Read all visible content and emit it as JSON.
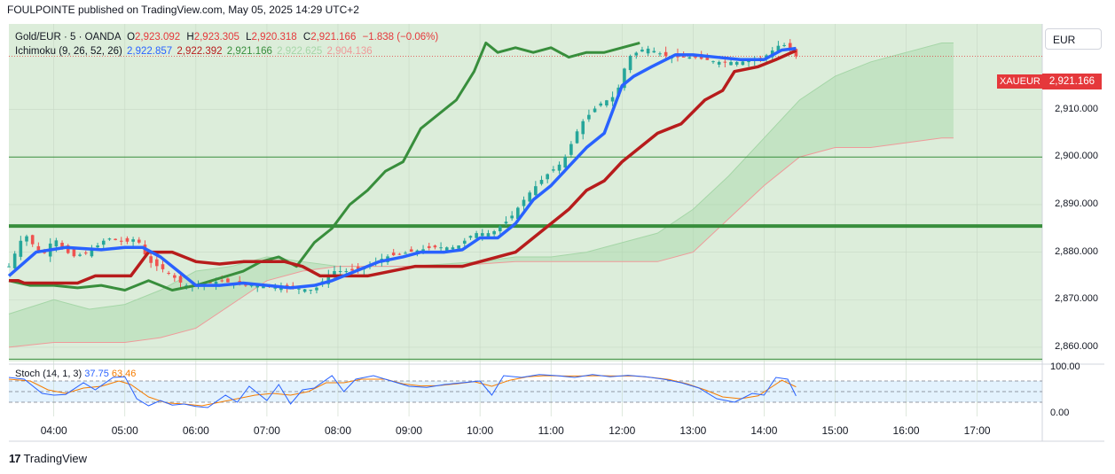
{
  "header": {
    "publisher_line": "FOULPOINTE published on TradingView.com, May 05, 2025 14:29 UTC+2"
  },
  "legend": {
    "symbol": "Gold/EUR · 5 · OANDA",
    "o_label": "O",
    "o": "2,923.092",
    "h_label": "H",
    "h": "2,923.305",
    "l_label": "L",
    "l": "2,920.318",
    "c_label": "C",
    "c": "2,921.166",
    "change": "−1.838 (−0.06%)",
    "ichimoku_label": "Ichimoku (9, 26, 52, 26)",
    "conversion": "2,922.857",
    "base": "2,922.392",
    "lagging": "2,921.166",
    "span_a": "2,922.625",
    "span_b": "2,904.136"
  },
  "stoch": {
    "label": "Stoch (14, 1, 3)",
    "k": "37.75",
    "d": "63.46"
  },
  "currency": "EUR",
  "price_tag": {
    "symbol": "XAUEUR",
    "price": "2,921.166"
  },
  "footer": {
    "brand": "TradingView"
  },
  "colors": {
    "up": "#26a69a",
    "down": "#ef5350",
    "conversion": "#2962ff",
    "base": "#b71c1c",
    "lagging": "#388e3c",
    "span_a": "#a5d6a7",
    "span_b": "#ef9a9a",
    "stoch_k": "#2962ff",
    "stoch_d": "#f57c00"
  },
  "chart_data": {
    "type": "candlestick",
    "instrument": "Gold/EUR",
    "timeframe": "5",
    "price_axis": {
      "ticks": [
        "2,860.000",
        "2,870.000",
        "2,880.000",
        "2,890.000",
        "2,900.000",
        "2,910.000"
      ],
      "range": [
        2857,
        2928
      ]
    },
    "stoch_axis": {
      "ticks": [
        "0.00",
        "100.00"
      ],
      "bands": [
        20,
        80
      ]
    },
    "time_axis": {
      "ticks": [
        "04:00",
        "05:00",
        "06:00",
        "07:00",
        "08:00",
        "09:00",
        "10:00",
        "11:00",
        "12:00",
        "13:00",
        "14:00",
        "15:00",
        "16:00",
        "17:00"
      ]
    },
    "horizontal_lines": [
      2900,
      2885.5,
      2857.5
    ],
    "price_path": [
      [
        "03:22",
        2877
      ],
      [
        "03:35",
        2884
      ],
      [
        "03:50",
        2879
      ],
      [
        "04:00",
        2883
      ],
      [
        "04:15",
        2879
      ],
      [
        "04:30",
        2880
      ],
      [
        "04:45",
        2883
      ],
      [
        "05:00",
        2882
      ],
      [
        "05:10",
        2883
      ],
      [
        "05:20",
        2878
      ],
      [
        "05:35",
        2876
      ],
      [
        "05:50",
        2873
      ],
      [
        "06:05",
        2873
      ],
      [
        "06:20",
        2874
      ],
      [
        "06:40",
        2873
      ],
      [
        "07:00",
        2873
      ],
      [
        "07:20",
        2872.5
      ],
      [
        "07:40",
        2872
      ],
      [
        "07:55",
        2876
      ],
      [
        "08:10",
        2876
      ],
      [
        "08:25",
        2877
      ],
      [
        "08:40",
        2879
      ],
      [
        "09:00",
        2880
      ],
      [
        "09:20",
        2881
      ],
      [
        "09:40",
        2881
      ],
      [
        "09:55",
        2884
      ],
      [
        "10:10",
        2884
      ],
      [
        "10:25",
        2887
      ],
      [
        "10:40",
        2892
      ],
      [
        "10:55",
        2896
      ],
      [
        "11:10",
        2899
      ],
      [
        "11:25",
        2907
      ],
      [
        "11:40",
        2911
      ],
      [
        "11:55",
        2913
      ],
      [
        "12:05",
        2921
      ],
      [
        "12:20",
        2923
      ],
      [
        "12:40",
        2921
      ],
      [
        "13:00",
        2921
      ],
      [
        "13:20",
        2920
      ],
      [
        "13:40",
        2920
      ],
      [
        "14:00",
        2921
      ],
      [
        "14:15",
        2924
      ],
      [
        "14:27",
        2921.2
      ]
    ],
    "conversion_line": [
      [
        "03:22",
        2875
      ],
      [
        "03:45",
        2880
      ],
      [
        "04:10",
        2881
      ],
      [
        "04:40",
        2880.5
      ],
      [
        "05:00",
        2881
      ],
      [
        "05:15",
        2881
      ],
      [
        "05:30",
        2879
      ],
      [
        "05:45",
        2876
      ],
      [
        "06:00",
        2873
      ],
      [
        "06:20",
        2873
      ],
      [
        "06:40",
        2873.5
      ],
      [
        "07:00",
        2873
      ],
      [
        "07:20",
        2872.5
      ],
      [
        "07:40",
        2873
      ],
      [
        "07:55",
        2874
      ],
      [
        "08:15",
        2876
      ],
      [
        "08:35",
        2878
      ],
      [
        "08:55",
        2879
      ],
      [
        "09:10",
        2880
      ],
      [
        "09:30",
        2880
      ],
      [
        "09:45",
        2880.5
      ],
      [
        "10:00",
        2883
      ],
      [
        "10:15",
        2883
      ],
      [
        "10:30",
        2886
      ],
      [
        "10:45",
        2891
      ],
      [
        "11:00",
        2894
      ],
      [
        "11:15",
        2898
      ],
      [
        "11:30",
        2902
      ],
      [
        "11:45",
        2905
      ],
      [
        "12:00",
        2915
      ],
      [
        "12:10",
        2917
      ],
      [
        "12:25",
        2919
      ],
      [
        "12:45",
        2921.5
      ],
      [
        "13:00",
        2921.5
      ],
      [
        "13:20",
        2921
      ],
      [
        "13:40",
        2920.5
      ],
      [
        "14:00",
        2920.5
      ],
      [
        "14:15",
        2922.5
      ],
      [
        "14:27",
        2922.86
      ]
    ],
    "base_line": [
      [
        "03:22",
        2874
      ],
      [
        "03:30",
        2874
      ],
      [
        "03:35",
        2873.5
      ],
      [
        "04:00",
        2873.5
      ],
      [
        "04:20",
        2873.5
      ],
      [
        "04:35",
        2875
      ],
      [
        "05:05",
        2875
      ],
      [
        "05:20",
        2880
      ],
      [
        "05:40",
        2880
      ],
      [
        "06:00",
        2878
      ],
      [
        "06:20",
        2877.5
      ],
      [
        "06:40",
        2878
      ],
      [
        "07:00",
        2878
      ],
      [
        "07:15",
        2878
      ],
      [
        "07:30",
        2877
      ],
      [
        "07:45",
        2875
      ],
      [
        "08:00",
        2875
      ],
      [
        "08:25",
        2875
      ],
      [
        "08:45",
        2876
      ],
      [
        "09:05",
        2877
      ],
      [
        "09:25",
        2877
      ],
      [
        "09:45",
        2877
      ],
      [
        "10:00",
        2878
      ],
      [
        "10:15",
        2879
      ],
      [
        "10:30",
        2880
      ],
      [
        "10:45",
        2883
      ],
      [
        "11:00",
        2886
      ],
      [
        "11:15",
        2889
      ],
      [
        "11:30",
        2893
      ],
      [
        "11:45",
        2895
      ],
      [
        "12:00",
        2899
      ],
      [
        "12:15",
        2902
      ],
      [
        "12:30",
        2905
      ],
      [
        "12:50",
        2907
      ],
      [
        "13:10",
        2912
      ],
      [
        "13:25",
        2914
      ],
      [
        "13:35",
        2918
      ],
      [
        "13:55",
        2919
      ],
      [
        "14:10",
        2920.5
      ],
      [
        "14:27",
        2922.39
      ]
    ],
    "lagging_span": [
      [
        "03:22",
        2874
      ],
      [
        "03:40",
        2873
      ],
      [
        "04:00",
        2873
      ],
      [
        "04:20",
        2872.5
      ],
      [
        "04:40",
        2873
      ],
      [
        "05:00",
        2872
      ],
      [
        "05:20",
        2874
      ],
      [
        "05:40",
        2872
      ],
      [
        "06:00",
        2873
      ],
      [
        "06:20",
        2874.5
      ],
      [
        "06:40",
        2876
      ],
      [
        "06:55",
        2878
      ],
      [
        "07:10",
        2879
      ],
      [
        "07:25",
        2877
      ],
      [
        "07:40",
        2882
      ],
      [
        "07:55",
        2885
      ],
      [
        "08:10",
        2890
      ],
      [
        "08:25",
        2893
      ],
      [
        "08:40",
        2897
      ],
      [
        "08:55",
        2899
      ],
      [
        "09:10",
        2906
      ],
      [
        "09:25",
        2909
      ],
      [
        "09:40",
        2912
      ],
      [
        "09:55",
        2918
      ],
      [
        "10:05",
        2924
      ],
      [
        "10:15",
        2922
      ],
      [
        "10:30",
        2923
      ],
      [
        "10:45",
        2922
      ],
      [
        "11:00",
        2923
      ],
      [
        "11:15",
        2921
      ],
      [
        "11:30",
        2922
      ],
      [
        "11:45",
        2922
      ],
      [
        "12:00",
        2923
      ],
      [
        "12:15",
        2924
      ]
    ],
    "span_a": [
      [
        "03:22",
        2867
      ],
      [
        "04:00",
        2870
      ],
      [
        "04:30",
        2868
      ],
      [
        "05:00",
        2869
      ],
      [
        "05:30",
        2872
      ],
      [
        "06:00",
        2876
      ],
      [
        "06:30",
        2877
      ],
      [
        "07:00",
        2879
      ],
      [
        "07:30",
        2878
      ],
      [
        "08:00",
        2877
      ],
      [
        "08:30",
        2877
      ],
      [
        "09:00",
        2877
      ],
      [
        "09:30",
        2877.5
      ],
      [
        "10:00",
        2878
      ],
      [
        "10:30",
        2879
      ],
      [
        "11:00",
        2879
      ],
      [
        "11:30",
        2880
      ],
      [
        "12:00",
        2882
      ],
      [
        "12:30",
        2884
      ],
      [
        "13:00",
        2889
      ],
      [
        "13:30",
        2896
      ],
      [
        "14:00",
        2904
      ],
      [
        "14:30",
        2912
      ],
      [
        "15:00",
        2917
      ],
      [
        "15:30",
        2920
      ],
      [
        "16:00",
        2922
      ],
      [
        "16:30",
        2924
      ],
      [
        "16:40",
        2924
      ]
    ],
    "span_b": [
      [
        "03:22",
        2860
      ],
      [
        "04:00",
        2861
      ],
      [
        "04:30",
        2861
      ],
      [
        "05:00",
        2861
      ],
      [
        "05:30",
        2862
      ],
      [
        "06:00",
        2864
      ],
      [
        "06:30",
        2869
      ],
      [
        "07:00",
        2874
      ],
      [
        "07:30",
        2876
      ],
      [
        "08:00",
        2877
      ],
      [
        "08:30",
        2877
      ],
      [
        "09:00",
        2877
      ],
      [
        "09:30",
        2877
      ],
      [
        "10:00",
        2877.5
      ],
      [
        "10:30",
        2878
      ],
      [
        "11:00",
        2878
      ],
      [
        "11:30",
        2878
      ],
      [
        "12:00",
        2878
      ],
      [
        "12:30",
        2878
      ],
      [
        "13:00",
        2880
      ],
      [
        "13:30",
        2887
      ],
      [
        "14:00",
        2894
      ],
      [
        "14:30",
        2900
      ],
      [
        "15:00",
        2902
      ],
      [
        "15:30",
        2902
      ],
      [
        "16:00",
        2903
      ],
      [
        "16:30",
        2904
      ],
      [
        "16:40",
        2904
      ]
    ],
    "stoch_k": [
      [
        "03:22",
        90
      ],
      [
        "03:35",
        85
      ],
      [
        "03:50",
        45
      ],
      [
        "04:00",
        40
      ],
      [
        "04:10",
        42
      ],
      [
        "04:25",
        75
      ],
      [
        "04:35",
        55
      ],
      [
        "04:50",
        90
      ],
      [
        "05:00",
        92
      ],
      [
        "05:10",
        30
      ],
      [
        "05:20",
        10
      ],
      [
        "05:30",
        25
      ],
      [
        "05:40",
        12
      ],
      [
        "05:50",
        15
      ],
      [
        "06:00",
        8
      ],
      [
        "06:10",
        5
      ],
      [
        "06:25",
        40
      ],
      [
        "06:35",
        20
      ],
      [
        "06:45",
        65
      ],
      [
        "07:00",
        25
      ],
      [
        "07:10",
        70
      ],
      [
        "07:20",
        15
      ],
      [
        "07:30",
        55
      ],
      [
        "07:40",
        60
      ],
      [
        "07:55",
        95
      ],
      [
        "08:05",
        50
      ],
      [
        "08:15",
        85
      ],
      [
        "08:30",
        95
      ],
      [
        "08:45",
        80
      ],
      [
        "09:00",
        65
      ],
      [
        "09:15",
        62
      ],
      [
        "09:30",
        70
      ],
      [
        "09:45",
        75
      ],
      [
        "10:00",
        80
      ],
      [
        "10:10",
        40
      ],
      [
        "10:20",
        95
      ],
      [
        "10:35",
        90
      ],
      [
        "10:50",
        98
      ],
      [
        "11:05",
        95
      ],
      [
        "11:20",
        90
      ],
      [
        "11:35",
        98
      ],
      [
        "11:50",
        92
      ],
      [
        "12:05",
        96
      ],
      [
        "12:20",
        92
      ],
      [
        "12:35",
        85
      ],
      [
        "12:50",
        75
      ],
      [
        "13:05",
        60
      ],
      [
        "13:20",
        30
      ],
      [
        "13:35",
        20
      ],
      [
        "13:50",
        45
      ],
      [
        "14:00",
        40
      ],
      [
        "14:10",
        90
      ],
      [
        "14:20",
        85
      ],
      [
        "14:27",
        37.75
      ]
    ],
    "stoch_d": [
      [
        "03:22",
        85
      ],
      [
        "03:40",
        80
      ],
      [
        "03:55",
        55
      ],
      [
        "04:10",
        45
      ],
      [
        "04:25",
        60
      ],
      [
        "04:40",
        65
      ],
      [
        "04:55",
        80
      ],
      [
        "05:05",
        70
      ],
      [
        "05:20",
        35
      ],
      [
        "05:35",
        18
      ],
      [
        "05:50",
        15
      ],
      [
        "06:05",
        10
      ],
      [
        "06:20",
        20
      ],
      [
        "06:35",
        30
      ],
      [
        "06:50",
        40
      ],
      [
        "07:05",
        45
      ],
      [
        "07:20",
        40
      ],
      [
        "07:35",
        50
      ],
      [
        "07:50",
        75
      ],
      [
        "08:05",
        75
      ],
      [
        "08:20",
        85
      ],
      [
        "08:40",
        85
      ],
      [
        "08:55",
        72
      ],
      [
        "09:10",
        66
      ],
      [
        "09:25",
        67
      ],
      [
        "09:40",
        72
      ],
      [
        "09:55",
        78
      ],
      [
        "10:10",
        65
      ],
      [
        "10:25",
        82
      ],
      [
        "10:40",
        92
      ],
      [
        "10:55",
        95
      ],
      [
        "11:10",
        94
      ],
      [
        "11:25",
        94
      ],
      [
        "11:40",
        95
      ],
      [
        "11:55",
        94
      ],
      [
        "12:10",
        94
      ],
      [
        "12:25",
        90
      ],
      [
        "12:40",
        84
      ],
      [
        "12:55",
        72
      ],
      [
        "13:10",
        55
      ],
      [
        "13:25",
        35
      ],
      [
        "13:40",
        30
      ],
      [
        "13:55",
        38
      ],
      [
        "14:05",
        60
      ],
      [
        "14:15",
        82
      ],
      [
        "14:27",
        63.46
      ]
    ]
  }
}
